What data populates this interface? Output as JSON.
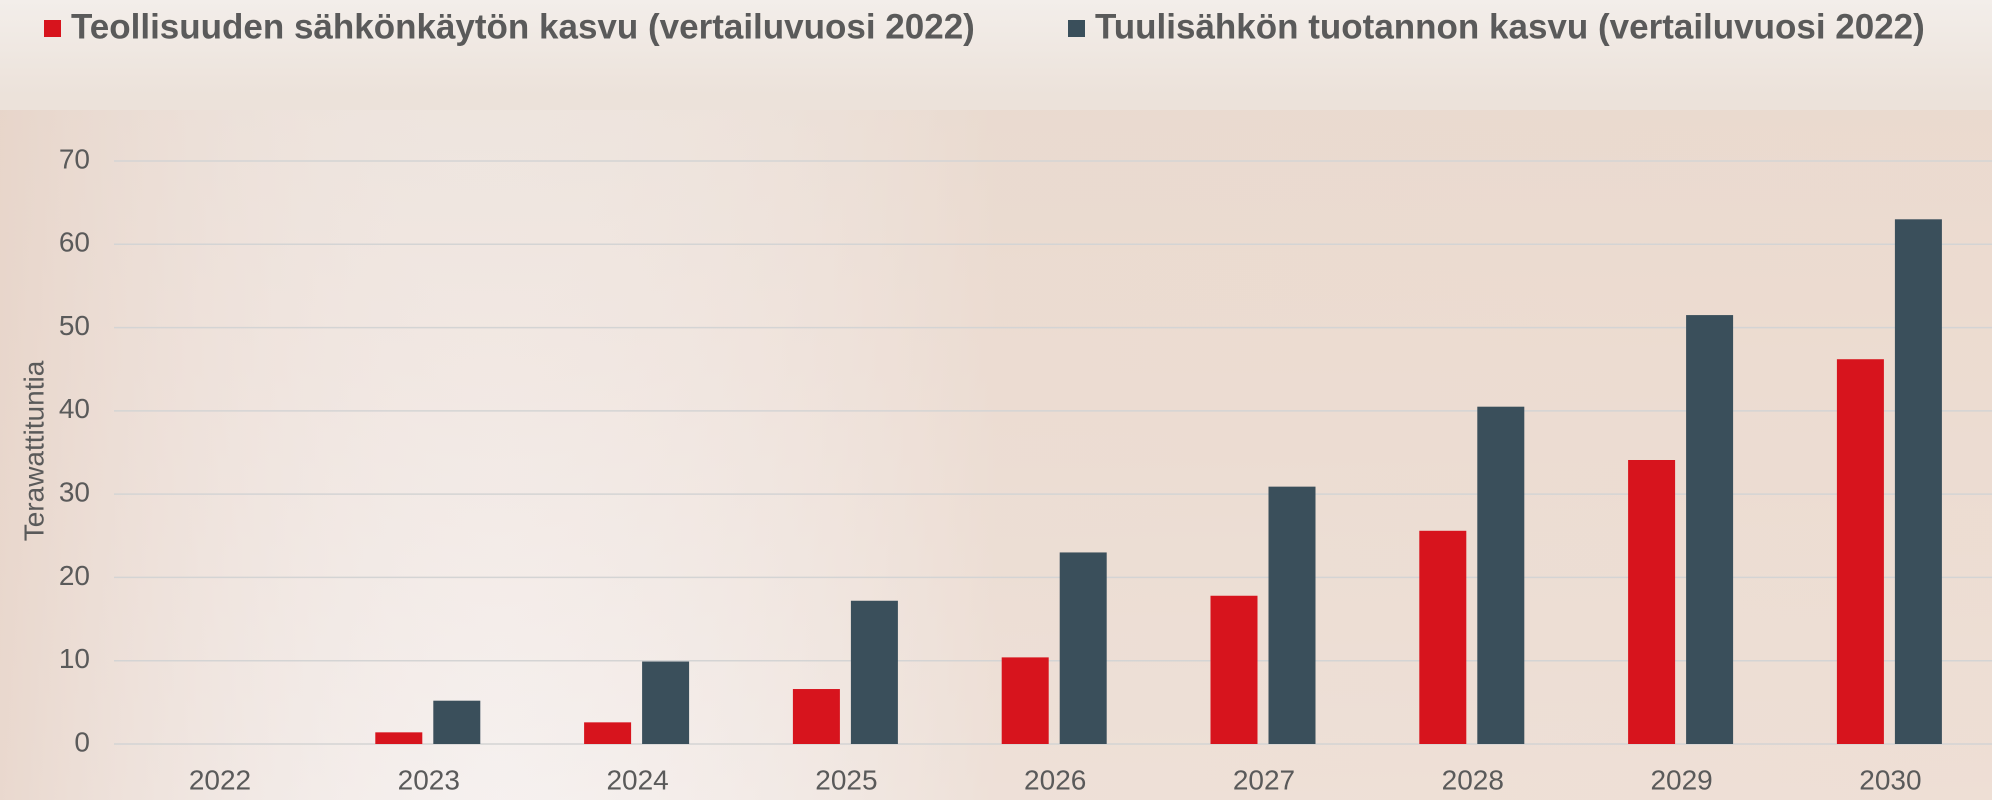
{
  "chart_data": {
    "type": "bar",
    "ylabel": "Terawattituntia",
    "categories": [
      "2022",
      "2023",
      "2024",
      "2025",
      "2026",
      "2027",
      "2028",
      "2029",
      "2030"
    ],
    "series": [
      {
        "name": "Teollisuuden sähkönkäytön kasvu (vertailuvuosi 2022)",
        "color": "#d7141d",
        "values": [
          0,
          1.4,
          2.6,
          6.6,
          10.4,
          17.8,
          25.6,
          34.1,
          46.2
        ]
      },
      {
        "name": "Tuulisähkön tuotannon kasvu (vertailuvuosi 2022)",
        "color": "#3a4f5b",
        "values": [
          0,
          5.2,
          9.9,
          17.2,
          23.0,
          30.9,
          40.5,
          51.5,
          63.0
        ]
      }
    ],
    "ylim": [
      0,
      70
    ],
    "yticks": [
      0,
      10,
      20,
      30,
      40,
      50,
      60,
      70
    ],
    "grid": true,
    "legend": "top"
  }
}
